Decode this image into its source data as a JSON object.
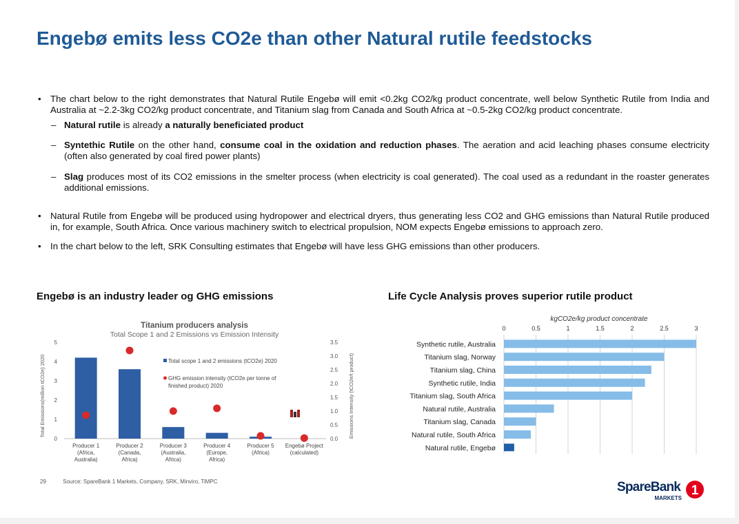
{
  "title": "Engebø emits less CO2e than other Natural rutile feedstocks",
  "bullets": {
    "b1": "The chart below to the right demonstrates that Natural Rutile Engebø will emit <0.2kg CO2/kg product concentrate, well below Synthetic Rutile from India and Australia at ~2.2-3kg CO2/kg product concentrate, and Titanium slag from Canada and South Africa at ~0.5-2kg CO2/kg product concentrate.",
    "s1_b1": "Natural rutile",
    "s1_t1": " is already ",
    "s1_b2": "a naturally beneficiated product",
    "s2_b1": "Syntethic Rutile",
    "s2_t1": " on the other hand, ",
    "s2_b2": "consume coal in the oxidation and reduction phases",
    "s2_t2": ". The aeration and acid leaching phases consume electricity (often also generated by coal fired power plants)",
    "s3_b1": "Slag",
    "s3_t1": " produces most of its CO2 emissions in the smelter process (when electricity is coal generated). The coal used as a redundant in the roaster generates additional emissions.",
    "b2": "Natural Rutile from Engebø will be produced using hydropower and electrical dryers, thus generating less CO2 and GHG emissions than Natural Rutile produced in, for example, South Africa. Once various machinery switch to electrical propulsion, NOM expects Engebø emissions to approach zero.",
    "b3": "In the chart below to the left, SRK Consulting estimates that Engebø will have less GHG emissions than other producers."
  },
  "left_heading": "Engebø is an industry leader og GHG emissions",
  "right_heading": "Life Cycle Analysis proves superior rutile product",
  "chart_data": [
    {
      "type": "bar",
      "title": "Titanium producers analysis",
      "subtitle": "Total Scope 1 and 2 Emissions vs Emission Intensity",
      "categories": [
        [
          "Producer 1",
          "(Africa,",
          "Australia)"
        ],
        [
          "Producer 2",
          "(Canada,",
          "Africa)"
        ],
        [
          "Producer 3",
          "(Australia,",
          "Africa)"
        ],
        [
          "Producer 4",
          "(Europe,",
          "Africa)"
        ],
        [
          "Producer 5",
          "(Africa)"
        ],
        [
          "Engebø Project",
          "(calculated)"
        ]
      ],
      "ylabel": "Total Emissions(million tCO2e) 2020",
      "y2label": "Emissions Intensity (tCO2e/t product)",
      "ylim": [
        0,
        5
      ],
      "y2lim": [
        0,
        3.5
      ],
      "yticks": [
        "0",
        "1",
        "2",
        "3",
        "4",
        "5"
      ],
      "y2ticks": [
        "0.0",
        "0.5",
        "1.0",
        "1.5",
        "2.0",
        "2.5",
        "3.0",
        "3.5"
      ],
      "series": [
        {
          "name": "Total scope 1 and 2 emissions (tCO2e) 2020",
          "type": "bar",
          "color": "#2e5ea4",
          "values": [
            4.2,
            3.6,
            0.6,
            0.3,
            0.1,
            0.0
          ]
        },
        {
          "name": "GHG emission intensity (tCO2e per tonne of finished product) 2020",
          "type": "scatter",
          "color": "#d82a2a",
          "values": [
            0.85,
            3.2,
            1.0,
            1.1,
            0.1,
            0.02
          ]
        }
      ],
      "legend_position": "right"
    },
    {
      "type": "bar",
      "orientation": "horizontal",
      "title": "kgCO2e/kg product concentrate",
      "xlim": [
        0,
        3
      ],
      "xticks": [
        "0",
        "0.5",
        "1",
        "1.5",
        "2",
        "2.5",
        "3"
      ],
      "categories": [
        "Synthetic rutile, Australia",
        "Titanium slag, Norway",
        "Titanium slag, China",
        "Synthetic rutile, India",
        "Titanium slag, South Africa",
        "Natural rutile, Australia",
        "Titanium slag, Canada",
        "Natural rutile, South Africa",
        "Natural rutile, Engebø"
      ],
      "values": [
        3.0,
        2.5,
        2.3,
        2.2,
        2.0,
        0.78,
        0.5,
        0.42,
        0.16
      ],
      "colors": {
        "default": "#85bce8",
        "highlight": "#1f5fa6"
      },
      "highlight_index": 8,
      "grid": true
    }
  ],
  "footer": {
    "page": "29",
    "source": "Source: SpareBank 1 Markets, Company, SRK, Minviro, TiMPC"
  },
  "logo": {
    "name": "SpareBank",
    "sub": "MARKETS",
    "num": "1"
  },
  "colors": {
    "title": "#1f5a96",
    "logo_red": "#e3001b"
  }
}
